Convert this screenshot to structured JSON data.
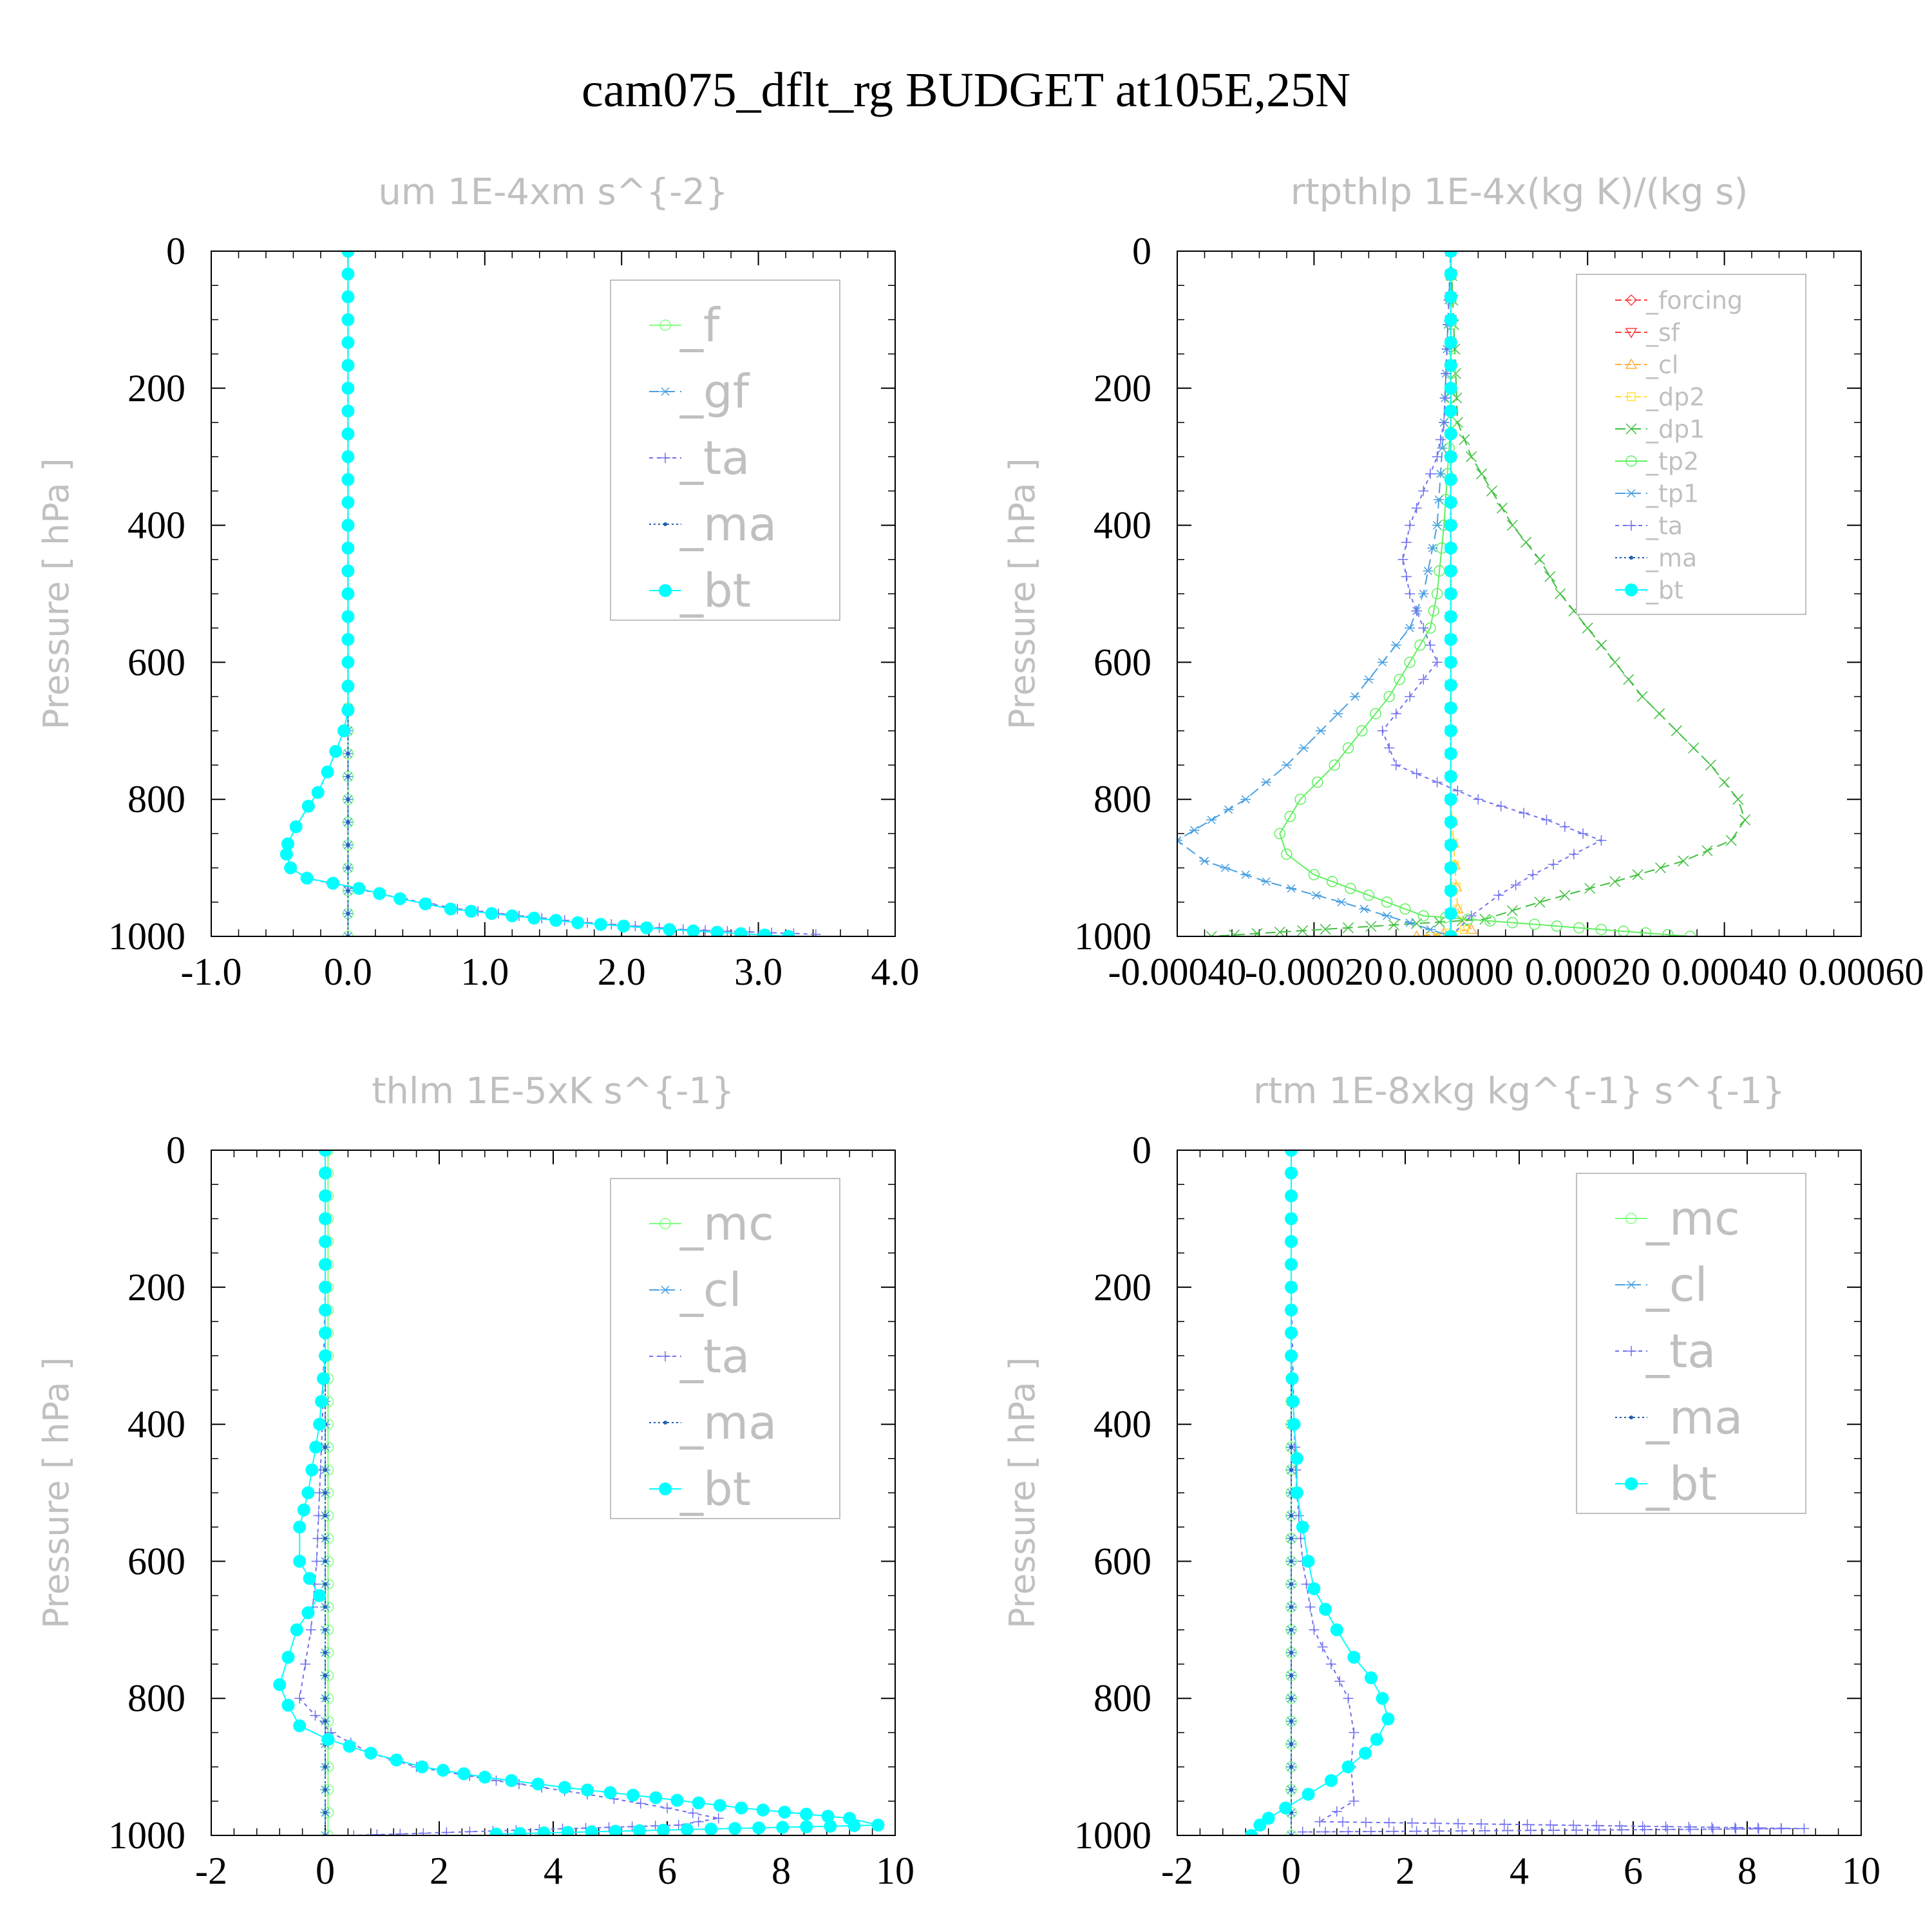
{
  "figure_title": "cam075_dflt_rg  BUDGET at105E,25N",
  "ylabel": "Pressure  [ hPa ]",
  "chart_data": [
    {
      "type": "line",
      "title": "um   1E-4xm s^{-2}",
      "ylabel": "Pressure  [ hPa ]",
      "xlim": [
        -1.0,
        4.0
      ],
      "ylim": [
        1000,
        0
      ],
      "xticks": [
        "-1.0",
        "0.0",
        "1.0",
        "2.0",
        "3.0",
        "4.0"
      ],
      "xtick_values": [
        -1.0,
        0.0,
        1.0,
        2.0,
        3.0,
        4.0
      ],
      "yticks": [
        "0",
        "200",
        "400",
        "600",
        "800",
        "1000"
      ],
      "ytick_values": [
        0,
        200,
        400,
        600,
        800,
        1000
      ],
      "legend_position": "top-right",
      "series": [
        {
          "name": "_f",
          "color": "#80ff80",
          "marker": "circle-open",
          "y": [
            0,
            100,
            200,
            300,
            400,
            500,
            600,
            700,
            800,
            900,
            1000
          ],
          "x": [
            0,
            0,
            0,
            0,
            0,
            0,
            0,
            0,
            0,
            0,
            0
          ]
        },
        {
          "name": "_gf",
          "color": "#4aa0e0",
          "marker": "asterisk",
          "y": [
            0,
            100,
            200,
            300,
            400,
            500,
            600,
            700,
            800,
            900,
            1000
          ],
          "x": [
            0,
            0,
            0,
            0,
            0,
            0,
            0,
            0,
            0,
            0,
            0
          ]
        },
        {
          "name": "_ta",
          "color": "#7070f0",
          "marker": "plus",
          "y": [
            0,
            200,
            400,
            600,
            670,
            700,
            730,
            760,
            790,
            810,
            840,
            865,
            880,
            900,
            915,
            930,
            945,
            960,
            970,
            980,
            990,
            997
          ],
          "x": [
            0,
            0,
            0,
            0,
            0,
            -0.03,
            -0.09,
            -0.15,
            -0.22,
            -0.29,
            -0.38,
            -0.44,
            -0.45,
            -0.42,
            -0.3,
            0.05,
            0.4,
            0.8,
            1.25,
            1.75,
            2.45,
            3.42
          ]
        },
        {
          "name": "_ma",
          "color": "#2060b0",
          "marker": "dot",
          "y": [
            0,
            200,
            400,
            600,
            800,
            1000
          ],
          "x": [
            0,
            0,
            0,
            0,
            0,
            0
          ]
        },
        {
          "name": "_bt",
          "color": "#00ffff",
          "marker": "filled-circle",
          "y": [
            0,
            200,
            400,
            600,
            670,
            700,
            730,
            760,
            790,
            810,
            840,
            865,
            880,
            900,
            915,
            930,
            945,
            960,
            970,
            980,
            990,
            1000
          ],
          "x": [
            0,
            0,
            0,
            0,
            0,
            -0.03,
            -0.09,
            -0.15,
            -0.22,
            -0.29,
            -0.38,
            -0.44,
            -0.45,
            -0.42,
            -0.3,
            0.08,
            0.38,
            0.75,
            1.2,
            1.68,
            2.35,
            3.22
          ]
        }
      ]
    },
    {
      "type": "line",
      "title": "rtpthlp   1E-4x(kg K)/(kg s)",
      "ylabel": "Pressure  [ hPa ]",
      "xlim": [
        -0.0004,
        0.0006
      ],
      "ylim": [
        1000,
        0
      ],
      "xticks": [
        "-0.00040",
        "-0.00020",
        "0.00000",
        "0.00020",
        "0.00040",
        "0.00060"
      ],
      "xtick_values": [
        -0.0004,
        -0.0002,
        0.0,
        0.0002,
        0.0004,
        0.0006
      ],
      "yticks": [
        "0",
        "200",
        "400",
        "600",
        "800",
        "1000"
      ],
      "ytick_values": [
        0,
        200,
        400,
        600,
        800,
        1000
      ],
      "legend_position": "top-right",
      "series": [
        {
          "name": "_forcing",
          "color": "#ff4040",
          "marker": "diamond-open",
          "y": [
            0,
            200,
            400,
            600,
            800,
            1000
          ],
          "x": [
            0,
            0,
            0,
            0,
            0,
            0
          ]
        },
        {
          "name": "_sf",
          "color": "#ff4040",
          "marker": "triangle-down",
          "y": [
            0,
            200,
            400,
            600,
            800,
            1000
          ],
          "x": [
            0,
            0,
            0,
            0,
            0,
            0
          ]
        },
        {
          "name": "_cl",
          "color": "#ffb040",
          "marker": "triangle-up",
          "y": [
            0,
            200,
            400,
            600,
            800,
            960,
            990,
            1000
          ],
          "x": [
            0,
            0,
            0,
            0,
            0,
            1e-05,
            3e-05,
            -5e-05
          ]
        },
        {
          "name": "_dp2",
          "color": "#ffe040",
          "marker": "square-open",
          "y": [
            0,
            200,
            400,
            600,
            800,
            960,
            990,
            1000
          ],
          "x": [
            0,
            0,
            0,
            0,
            0,
            1e-05,
            2e-05,
            -3e-05
          ]
        },
        {
          "name": "_dp1",
          "color": "#40c040",
          "marker": "x",
          "y": [
            0,
            250,
            300,
            350,
            400,
            450,
            500,
            550,
            600,
            650,
            700,
            750,
            800,
            830,
            860,
            890,
            920,
            950,
            975,
            1000
          ],
          "x": [
            0,
            1e-05,
            3e-05,
            6e-05,
            9e-05,
            0.00013,
            0.00016,
            0.0002,
            0.00024,
            0.00028,
            0.00033,
            0.00038,
            0.00042,
            0.00043,
            0.00041,
            0.00034,
            0.00024,
            0.00013,
            5e-05,
            -0.00035
          ]
        },
        {
          "name": "_tp2",
          "color": "#60f060",
          "marker": "circle-open",
          "y": [
            0,
            250,
            400,
            500,
            550,
            600,
            650,
            700,
            750,
            800,
            850,
            880,
            910,
            940,
            970,
            1000
          ],
          "x": [
            0,
            0,
            -1e-05,
            -2e-05,
            -3e-05,
            -6e-05,
            -9e-05,
            -0.00013,
            -0.00017,
            -0.00022,
            -0.00025,
            -0.00024,
            -0.0002,
            -0.00012,
            -4e-05,
            0.00035
          ]
        },
        {
          "name": "_tp1",
          "color": "#4aa0e0",
          "marker": "asterisk",
          "y": [
            0,
            250,
            400,
            500,
            550,
            600,
            650,
            700,
            750,
            800,
            830,
            860,
            890,
            920,
            950,
            980,
            1000
          ],
          "x": [
            0,
            -1e-05,
            -2e-05,
            -4e-05,
            -6e-05,
            -0.0001,
            -0.00014,
            -0.00019,
            -0.00024,
            -0.0003,
            -0.00035,
            -0.0004,
            -0.00036,
            -0.00027,
            -0.00016,
            -6e-05,
            0.0
          ]
        },
        {
          "name": "_ta",
          "color": "#7070f0",
          "marker": "plus",
          "y": [
            0,
            250,
            300,
            350,
            400,
            450,
            500,
            550,
            600,
            650,
            700,
            750,
            800,
            830,
            860,
            880,
            910,
            940,
            970,
            1000
          ],
          "x": [
            0,
            -1e-05,
            -2e-05,
            -4e-05,
            -6e-05,
            -7e-05,
            -6e-05,
            -4e-05,
            -2e-05,
            -6e-05,
            -0.0001,
            -8e-05,
            4e-05,
            0.00014,
            0.00022,
            0.00018,
            0.00012,
            7e-05,
            3e-05,
            0
          ]
        },
        {
          "name": "_ma",
          "color": "#2060b0",
          "marker": "dot",
          "y": [
            0,
            200,
            400,
            600,
            800,
            1000
          ],
          "x": [
            0,
            0,
            0,
            0,
            0,
            0
          ]
        },
        {
          "name": "_bt",
          "color": "#00ffff",
          "marker": "filled-circle",
          "y": [
            0,
            200,
            400,
            600,
            800,
            1000
          ],
          "x": [
            0,
            0,
            0,
            0,
            0,
            0
          ]
        }
      ]
    },
    {
      "type": "line",
      "title": "thlm   1E-5xK s^{-1}",
      "ylabel": "Pressure  [ hPa ]",
      "xlim": [
        -2,
        10
      ],
      "ylim": [
        1000,
        0
      ],
      "xticks": [
        "-2",
        "0",
        "2",
        "4",
        "6",
        "8",
        "10"
      ],
      "xtick_values": [
        -2,
        0,
        2,
        4,
        6,
        8,
        10
      ],
      "yticks": [
        "0",
        "200",
        "400",
        "600",
        "800",
        "1000"
      ],
      "ytick_values": [
        0,
        200,
        400,
        600,
        800,
        1000
      ],
      "legend_position": "top-right",
      "series": [
        {
          "name": "_mc",
          "color": "#80ff80",
          "marker": "circle-open",
          "y": [
            0,
            200,
            400,
            600,
            800,
            1000
          ],
          "x": [
            0.05,
            0.05,
            0.05,
            0.05,
            0.05,
            0.05
          ]
        },
        {
          "name": "_cl",
          "color": "#4aa0e0",
          "marker": "asterisk",
          "y": [
            0,
            200,
            400,
            600,
            800,
            1000
          ],
          "x": [
            0,
            0,
            0,
            0,
            0,
            0
          ]
        },
        {
          "name": "_ta",
          "color": "#7070f0",
          "marker": "plus",
          "y": [
            0,
            200,
            400,
            500,
            600,
            700,
            750,
            800,
            850,
            880,
            900,
            920,
            940,
            960,
            975,
            985,
            1000
          ],
          "x": [
            0,
            0,
            -0.05,
            -0.1,
            -0.15,
            -0.25,
            -0.35,
            -0.45,
            0.1,
            0.8,
            1.6,
            3.0,
            4.6,
            6.0,
            6.9,
            6.2,
            0.5
          ]
        },
        {
          "name": "_ma",
          "color": "#2060b0",
          "marker": "dot",
          "y": [
            0,
            200,
            400,
            600,
            800,
            1000
          ],
          "x": [
            0,
            0,
            0,
            0,
            0,
            0
          ]
        },
        {
          "name": "_bt",
          "color": "#00ffff",
          "marker": "filled-circle",
          "y": [
            0,
            100,
            200,
            300,
            400,
            500,
            550,
            600,
            650,
            700,
            740,
            780,
            810,
            840,
            860,
            880,
            900,
            915,
            930,
            945,
            960,
            975,
            985,
            998
          ],
          "x": [
            0,
            0,
            0,
            0,
            -0.1,
            -0.3,
            -0.45,
            -0.45,
            -0.1,
            -0.5,
            -0.65,
            -0.8,
            -0.65,
            -0.45,
            0.05,
            0.8,
            1.7,
            2.8,
            4.2,
            5.8,
            7.3,
            9.2,
            9.7,
            3.0
          ]
        }
      ]
    },
    {
      "type": "line",
      "title": "rtm   1E-8xkg kg^{-1} s^{-1}",
      "ylabel": "Pressure  [ hPa ]",
      "xlim": [
        -2,
        10
      ],
      "ylim": [
        1000,
        0
      ],
      "xticks": [
        "-2",
        "0",
        "2",
        "4",
        "6",
        "8",
        "10"
      ],
      "xtick_values": [
        -2,
        0,
        2,
        4,
        6,
        8,
        10
      ],
      "yticks": [
        "0",
        "200",
        "400",
        "600",
        "800",
        "1000"
      ],
      "ytick_values": [
        0,
        200,
        400,
        600,
        800,
        1000
      ],
      "legend_position": "top-right",
      "series": [
        {
          "name": "_mc",
          "color": "#80ff80",
          "marker": "circle-open",
          "y": [
            0,
            200,
            400,
            600,
            800,
            1000
          ],
          "x": [
            0,
            0,
            0,
            0,
            0,
            0
          ]
        },
        {
          "name": "_cl",
          "color": "#4aa0e0",
          "marker": "asterisk",
          "y": [
            0,
            200,
            400,
            600,
            800,
            1000
          ],
          "x": [
            0,
            0,
            0,
            0,
            0,
            0
          ]
        },
        {
          "name": "_ta",
          "color": "#7070f0",
          "marker": "plus",
          "y": [
            0,
            200,
            400,
            500,
            600,
            700,
            750,
            800,
            850,
            900,
            950,
            980,
            990,
            995
          ],
          "x": [
            0,
            0,
            0.05,
            0.1,
            0.2,
            0.4,
            0.7,
            1.0,
            1.1,
            1.05,
            1.1,
            0.5,
            9.0,
            0.2
          ]
        },
        {
          "name": "_ma",
          "color": "#2060b0",
          "marker": "dot",
          "y": [
            0,
            200,
            400,
            600,
            800,
            1000
          ],
          "x": [
            0,
            0,
            0,
            0,
            0,
            0
          ]
        },
        {
          "name": "_bt",
          "color": "#00ffff",
          "marker": "filled-circle",
          "y": [
            0,
            100,
            200,
            300,
            400,
            450,
            500,
            550,
            600,
            640,
            670,
            700,
            740,
            770,
            800,
            830,
            860,
            880,
            900,
            920,
            940,
            960,
            975,
            985,
            1000
          ],
          "x": [
            0,
            0,
            0,
            0,
            0.05,
            0.1,
            0.1,
            0.2,
            0.3,
            0.4,
            0.6,
            0.8,
            1.1,
            1.4,
            1.6,
            1.7,
            1.5,
            1.3,
            1.0,
            0.7,
            0.3,
            -0.1,
            -0.4,
            -0.55,
            -0.7
          ]
        }
      ]
    }
  ]
}
